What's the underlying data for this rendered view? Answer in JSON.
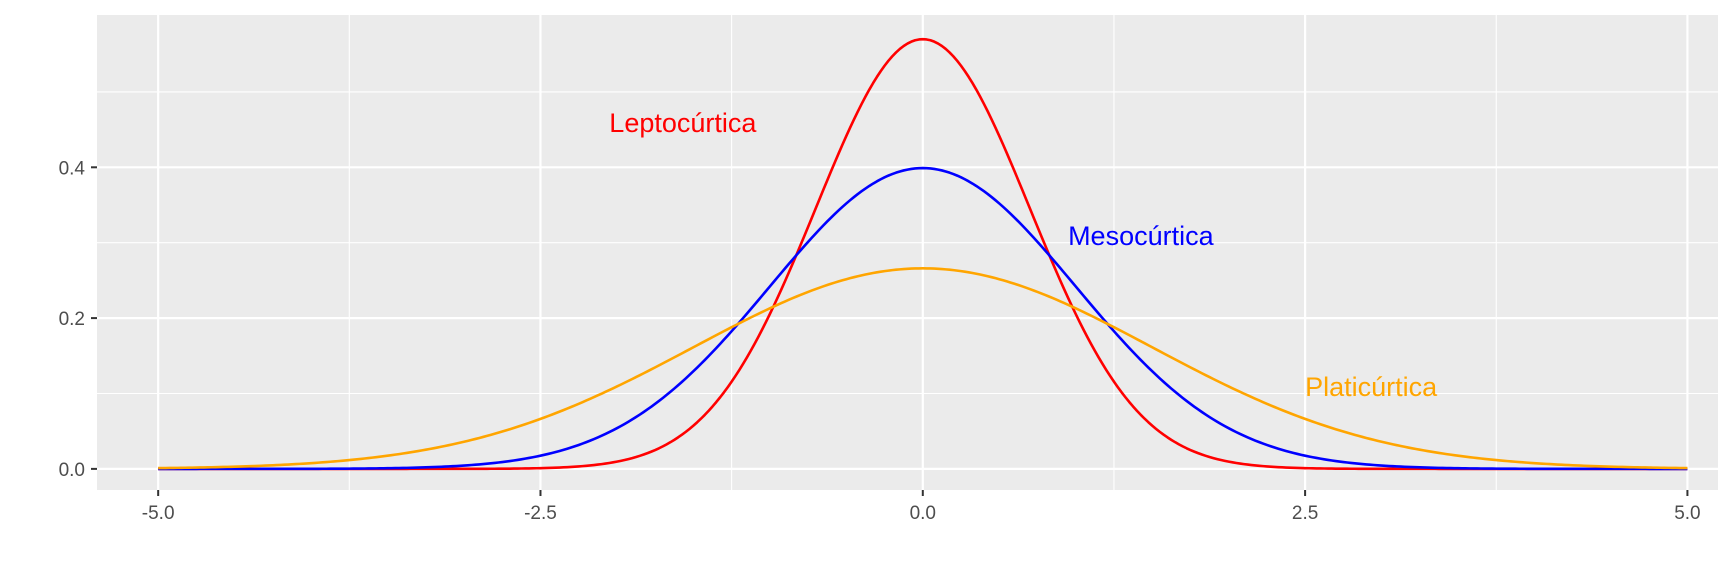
{
  "chart_data": {
    "type": "line",
    "title": "",
    "xlabel": "",
    "ylabel": "",
    "xlim": [
      -5.4,
      5.2
    ],
    "ylim": [
      -0.028,
      0.602
    ],
    "x_ticks": [
      -5.0,
      -2.5,
      0.0,
      2.5,
      5.0
    ],
    "x_tick_labels": [
      "-5.0",
      "-2.5",
      "0.0",
      "2.5",
      "5.0"
    ],
    "y_ticks": [
      0.0,
      0.2,
      0.4
    ],
    "y_tick_labels": [
      "0.0",
      "0.2",
      "0.4"
    ],
    "grid": true,
    "background": "#ebebeb",
    "series": [
      {
        "name": "Leptocúrtica",
        "color": "#ff0000",
        "distribution": "normal",
        "mean": 0,
        "sd": 0.7,
        "x": [
          -5,
          -3,
          -2.5,
          -2,
          -1.5,
          -1,
          -0.5,
          0,
          0.5,
          1,
          1.5,
          2,
          2.5,
          3,
          5
        ],
        "y": [
          0.0,
          0.0,
          0.0,
          0.009,
          0.057,
          0.205,
          0.44,
          0.57,
          0.44,
          0.205,
          0.057,
          0.009,
          0.0,
          0.0,
          0.0
        ]
      },
      {
        "name": "Mesocúrtica",
        "color": "#0000ff",
        "distribution": "normal",
        "mean": 0,
        "sd": 1.0,
        "x": [
          -5,
          -4,
          -3,
          -2.5,
          -2,
          -1.5,
          -1,
          -0.5,
          0,
          0.5,
          1,
          1.5,
          2,
          2.5,
          3,
          4,
          5
        ],
        "y": [
          0.0,
          0.0,
          0.004,
          0.018,
          0.054,
          0.13,
          0.242,
          0.352,
          0.399,
          0.352,
          0.242,
          0.13,
          0.054,
          0.018,
          0.004,
          0.0,
          0.0
        ]
      },
      {
        "name": "Platicúrtica",
        "color": "#ffa500",
        "distribution": "normal",
        "mean": 0,
        "sd": 1.5,
        "x": [
          -5,
          -4,
          -3,
          -2.5,
          -2,
          -1.5,
          -1,
          -0.5,
          0,
          0.5,
          1,
          1.5,
          2,
          2.5,
          3,
          4,
          5
        ],
        "y": [
          0.001,
          0.008,
          0.036,
          0.066,
          0.109,
          0.161,
          0.213,
          0.252,
          0.266,
          0.252,
          0.213,
          0.161,
          0.109,
          0.066,
          0.036,
          0.008,
          0.001
        ]
      }
    ],
    "annotations": [
      {
        "text": "Leptocúrtica",
        "x": -2.05,
        "y": 0.447,
        "color": "#ff0000"
      },
      {
        "text": "Mesocúrtica",
        "x": 0.95,
        "y": 0.297,
        "color": "#0000ff"
      },
      {
        "text": "Platicúrtica",
        "x": 2.5,
        "y": 0.097,
        "color": "#ffa500"
      }
    ]
  }
}
